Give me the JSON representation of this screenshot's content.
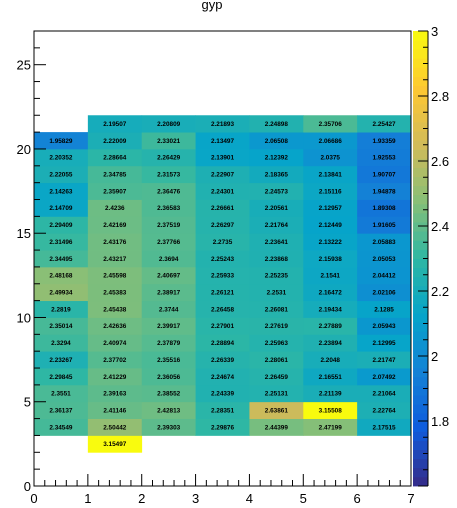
{
  "chart_data": {
    "type": "heatmap",
    "title": "gyp",
    "xlabel": "",
    "ylabel": "",
    "xlim": [
      0,
      7
    ],
    "ylim": [
      0,
      27
    ],
    "x_ticks": [
      0,
      1,
      2,
      3,
      4,
      5,
      6,
      7
    ],
    "y_ticks": [
      0,
      5,
      10,
      15,
      20,
      25
    ],
    "zlim": [
      1.6,
      3
    ],
    "z_ticks": [
      1.8,
      2,
      2.2,
      2.4,
      2.6,
      2.8,
      3
    ],
    "z_tick_labels": [
      "1.8",
      "2",
      "2.2",
      "2.4",
      "2.6",
      "2.8",
      "3"
    ],
    "palette": [
      "#352a87",
      "#0f5cdd",
      "#1481d6",
      "#06a4ca",
      "#2eb7a4",
      "#87bf77",
      "#d1bb59",
      "#fec832",
      "#f9fb0e"
    ],
    "cells": [
      {
        "x": 1,
        "y": 2,
        "value": "3.15497"
      },
      {
        "x": 0,
        "y": 3,
        "value": "2.34549"
      },
      {
        "x": 1,
        "y": 3,
        "value": "2.50442"
      },
      {
        "x": 2,
        "y": 3,
        "value": "2.39303"
      },
      {
        "x": 3,
        "y": 3,
        "value": "2.29876"
      },
      {
        "x": 4,
        "y": 3,
        "value": "2.44399"
      },
      {
        "x": 5,
        "y": 3,
        "value": "2.47199"
      },
      {
        "x": 6,
        "y": 3,
        "value": "2.17515"
      },
      {
        "x": 0,
        "y": 4,
        "value": "2.36137"
      },
      {
        "x": 1,
        "y": 4,
        "value": "2.41146"
      },
      {
        "x": 2,
        "y": 4,
        "value": "2.42813"
      },
      {
        "x": 3,
        "y": 4,
        "value": "2.28351"
      },
      {
        "x": 4,
        "y": 4,
        "value": "2.63861"
      },
      {
        "x": 5,
        "y": 4,
        "value": "3.15508"
      },
      {
        "x": 6,
        "y": 4,
        "value": "2.22764"
      },
      {
        "x": 0,
        "y": 5,
        "value": "2.3551"
      },
      {
        "x": 1,
        "y": 5,
        "value": "2.39163"
      },
      {
        "x": 2,
        "y": 5,
        "value": "2.38552"
      },
      {
        "x": 3,
        "y": 5,
        "value": "2.24339"
      },
      {
        "x": 4,
        "y": 5,
        "value": "2.25131"
      },
      {
        "x": 5,
        "y": 5,
        "value": "2.21139"
      },
      {
        "x": 6,
        "y": 5,
        "value": "2.21064"
      },
      {
        "x": 0,
        "y": 6,
        "value": "2.29845"
      },
      {
        "x": 1,
        "y": 6,
        "value": "2.41229"
      },
      {
        "x": 2,
        "y": 6,
        "value": "2.36056"
      },
      {
        "x": 3,
        "y": 6,
        "value": "2.24674"
      },
      {
        "x": 4,
        "y": 6,
        "value": "2.26459"
      },
      {
        "x": 5,
        "y": 6,
        "value": "2.16551"
      },
      {
        "x": 6,
        "y": 6,
        "value": "2.07492"
      },
      {
        "x": 0,
        "y": 7,
        "value": "2.23267"
      },
      {
        "x": 1,
        "y": 7,
        "value": "2.37702"
      },
      {
        "x": 2,
        "y": 7,
        "value": "2.35516"
      },
      {
        "x": 3,
        "y": 7,
        "value": "2.26339"
      },
      {
        "x": 4,
        "y": 7,
        "value": "2.28061"
      },
      {
        "x": 5,
        "y": 7,
        "value": "2.2048"
      },
      {
        "x": 6,
        "y": 7,
        "value": "2.21747"
      },
      {
        "x": 0,
        "y": 8,
        "value": "2.3294"
      },
      {
        "x": 1,
        "y": 8,
        "value": "2.40974"
      },
      {
        "x": 2,
        "y": 8,
        "value": "2.37879"
      },
      {
        "x": 3,
        "y": 8,
        "value": "2.28894"
      },
      {
        "x": 4,
        "y": 8,
        "value": "2.25963"
      },
      {
        "x": 5,
        "y": 8,
        "value": "2.23894"
      },
      {
        "x": 6,
        "y": 8,
        "value": "2.12995"
      },
      {
        "x": 0,
        "y": 9,
        "value": "2.35014"
      },
      {
        "x": 1,
        "y": 9,
        "value": "2.42636"
      },
      {
        "x": 2,
        "y": 9,
        "value": "2.39917"
      },
      {
        "x": 3,
        "y": 9,
        "value": "2.27901"
      },
      {
        "x": 4,
        "y": 9,
        "value": "2.27619"
      },
      {
        "x": 5,
        "y": 9,
        "value": "2.27889"
      },
      {
        "x": 6,
        "y": 9,
        "value": "2.05943"
      },
      {
        "x": 0,
        "y": 10,
        "value": "2.2819"
      },
      {
        "x": 1,
        "y": 10,
        "value": "2.45438"
      },
      {
        "x": 2,
        "y": 10,
        "value": "2.3744"
      },
      {
        "x": 3,
        "y": 10,
        "value": "2.26458"
      },
      {
        "x": 4,
        "y": 10,
        "value": "2.26081"
      },
      {
        "x": 5,
        "y": 10,
        "value": "2.19434"
      },
      {
        "x": 6,
        "y": 10,
        "value": "2.1285"
      },
      {
        "x": 0,
        "y": 11,
        "value": "2.49934"
      },
      {
        "x": 1,
        "y": 11,
        "value": "2.45383"
      },
      {
        "x": 2,
        "y": 11,
        "value": "2.38917"
      },
      {
        "x": 3,
        "y": 11,
        "value": "2.26121"
      },
      {
        "x": 4,
        "y": 11,
        "value": "2.2531"
      },
      {
        "x": 5,
        "y": 11,
        "value": "2.16472"
      },
      {
        "x": 6,
        "y": 11,
        "value": "2.02106"
      },
      {
        "x": 0,
        "y": 12,
        "value": "2.48168"
      },
      {
        "x": 1,
        "y": 12,
        "value": "2.45598"
      },
      {
        "x": 2,
        "y": 12,
        "value": "2.40697"
      },
      {
        "x": 3,
        "y": 12,
        "value": "2.25933"
      },
      {
        "x": 4,
        "y": 12,
        "value": "2.25235"
      },
      {
        "x": 5,
        "y": 12,
        "value": "2.1541"
      },
      {
        "x": 6,
        "y": 12,
        "value": "2.04412"
      },
      {
        "x": 0,
        "y": 13,
        "value": "2.34495"
      },
      {
        "x": 1,
        "y": 13,
        "value": "2.43217"
      },
      {
        "x": 2,
        "y": 13,
        "value": "2.3694"
      },
      {
        "x": 3,
        "y": 13,
        "value": "2.25243"
      },
      {
        "x": 4,
        "y": 13,
        "value": "2.23868"
      },
      {
        "x": 5,
        "y": 13,
        "value": "2.15938"
      },
      {
        "x": 6,
        "y": 13,
        "value": "2.05053"
      },
      {
        "x": 0,
        "y": 14,
        "value": "2.31496"
      },
      {
        "x": 1,
        "y": 14,
        "value": "2.43176"
      },
      {
        "x": 2,
        "y": 14,
        "value": "2.37766"
      },
      {
        "x": 3,
        "y": 14,
        "value": "2.2735"
      },
      {
        "x": 4,
        "y": 14,
        "value": "2.23641"
      },
      {
        "x": 5,
        "y": 14,
        "value": "2.13222"
      },
      {
        "x": 6,
        "y": 14,
        "value": "2.05883"
      },
      {
        "x": 0,
        "y": 15,
        "value": "2.29409"
      },
      {
        "x": 1,
        "y": 15,
        "value": "2.42169"
      },
      {
        "x": 2,
        "y": 15,
        "value": "2.37519"
      },
      {
        "x": 3,
        "y": 15,
        "value": "2.26297"
      },
      {
        "x": 4,
        "y": 15,
        "value": "2.21764"
      },
      {
        "x": 5,
        "y": 15,
        "value": "2.12449"
      },
      {
        "x": 6,
        "y": 15,
        "value": "1.91605"
      },
      {
        "x": 0,
        "y": 16,
        "value": "2.14709"
      },
      {
        "x": 1,
        "y": 16,
        "value": "2.4236"
      },
      {
        "x": 2,
        "y": 16,
        "value": "2.36583"
      },
      {
        "x": 3,
        "y": 16,
        "value": "2.26661"
      },
      {
        "x": 4,
        "y": 16,
        "value": "2.20561"
      },
      {
        "x": 5,
        "y": 16,
        "value": "2.12957"
      },
      {
        "x": 6,
        "y": 16,
        "value": "1.89308"
      },
      {
        "x": 0,
        "y": 17,
        "value": "2.14263"
      },
      {
        "x": 1,
        "y": 17,
        "value": "2.35907"
      },
      {
        "x": 2,
        "y": 17,
        "value": "2.36476"
      },
      {
        "x": 3,
        "y": 17,
        "value": "2.24301"
      },
      {
        "x": 4,
        "y": 17,
        "value": "2.24573"
      },
      {
        "x": 5,
        "y": 17,
        "value": "2.15116"
      },
      {
        "x": 6,
        "y": 17,
        "value": "1.94878"
      },
      {
        "x": 0,
        "y": 18,
        "value": "2.22055"
      },
      {
        "x": 1,
        "y": 18,
        "value": "2.34785"
      },
      {
        "x": 2,
        "y": 18,
        "value": "2.31573"
      },
      {
        "x": 3,
        "y": 18,
        "value": "2.22907"
      },
      {
        "x": 4,
        "y": 18,
        "value": "2.18365"
      },
      {
        "x": 5,
        "y": 18,
        "value": "2.13841"
      },
      {
        "x": 6,
        "y": 18,
        "value": "1.90707"
      },
      {
        "x": 0,
        "y": 19,
        "value": "2.20352"
      },
      {
        "x": 1,
        "y": 19,
        "value": "2.28664"
      },
      {
        "x": 2,
        "y": 19,
        "value": "2.26429"
      },
      {
        "x": 3,
        "y": 19,
        "value": "2.13901"
      },
      {
        "x": 4,
        "y": 19,
        "value": "2.12392"
      },
      {
        "x": 5,
        "y": 19,
        "value": "2.0375"
      },
      {
        "x": 6,
        "y": 19,
        "value": "1.92553"
      },
      {
        "x": 0,
        "y": 20,
        "value": "1.95829"
      },
      {
        "x": 1,
        "y": 20,
        "value": "2.22009"
      },
      {
        "x": 2,
        "y": 20,
        "value": "2.33021"
      },
      {
        "x": 3,
        "y": 20,
        "value": "2.13497"
      },
      {
        "x": 4,
        "y": 20,
        "value": "2.06508"
      },
      {
        "x": 5,
        "y": 20,
        "value": "2.06686"
      },
      {
        "x": 6,
        "y": 20,
        "value": "1.93359"
      },
      {
        "x": 1,
        "y": 21,
        "value": "2.19507"
      },
      {
        "x": 2,
        "y": 21,
        "value": "2.20809"
      },
      {
        "x": 3,
        "y": 21,
        "value": "2.21893"
      },
      {
        "x": 4,
        "y": 21,
        "value": "2.24898"
      },
      {
        "x": 5,
        "y": 21,
        "value": "2.35706"
      },
      {
        "x": 6,
        "y": 21,
        "value": "2.25427"
      }
    ]
  }
}
